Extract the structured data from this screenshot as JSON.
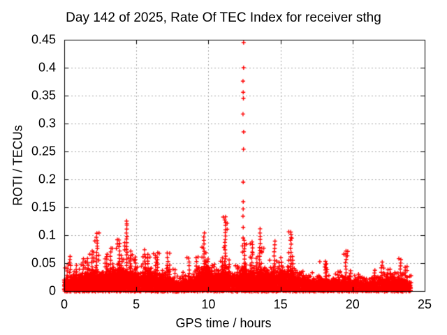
{
  "header": {
    "title": "Day 142 of 2025, Rate Of TEC Index for receiver sthg"
  },
  "chart_data": {
    "type": "scatter",
    "title": "Day 142 of 2025, Rate Of TEC Index for receiver sthg",
    "xlabel": "GPS time / hours",
    "ylabel": "ROTI / TECUs",
    "xlim": [
      0,
      25
    ],
    "ylim": [
      0,
      0.45
    ],
    "x_ticks": [
      "0",
      "5",
      "10",
      "15",
      "20",
      "25"
    ],
    "y_ticks": [
      "0",
      "0.05",
      "0.1",
      "0.15",
      "0.2",
      "0.25",
      "0.3",
      "0.35",
      "0.4",
      "0.45"
    ],
    "grid": true,
    "legend": "none",
    "marker": "plus",
    "marker_color": "#ff0000",
    "grid_color": "#a6a6a6",
    "axis_color": "#000000",
    "background": "#ffffff",
    "x_data_range": [
      0,
      24.05
    ],
    "spike": {
      "x": 12.42,
      "values": [
        0.445,
        0.4,
        0.376,
        0.356,
        0.345,
        0.317,
        0.285,
        0.254,
        0.195,
        0.16,
        0.147,
        0.134,
        0.114,
        0.095
      ]
    },
    "density_bins_format": "hour_start, hour_end, dense_band_top_TECUs, max_TECUs",
    "density_bins": [
      [
        0.0,
        0.3,
        0.02,
        0.042
      ],
      [
        0.3,
        0.6,
        0.022,
        0.062
      ],
      [
        0.6,
        1.0,
        0.025,
        0.048
      ],
      [
        1.0,
        1.4,
        0.028,
        0.058
      ],
      [
        1.4,
        1.9,
        0.03,
        0.066
      ],
      [
        1.9,
        2.2,
        0.032,
        0.076
      ],
      [
        2.2,
        2.6,
        0.032,
        0.105
      ],
      [
        2.6,
        3.0,
        0.03,
        0.066
      ],
      [
        3.0,
        3.3,
        0.032,
        0.078
      ],
      [
        3.3,
        3.9,
        0.038,
        0.096
      ],
      [
        3.9,
        4.15,
        0.035,
        0.07
      ],
      [
        4.15,
        4.5,
        0.035,
        0.13
      ],
      [
        4.5,
        4.9,
        0.032,
        0.072
      ],
      [
        4.9,
        5.2,
        0.03,
        0.062
      ],
      [
        5.2,
        5.6,
        0.03,
        0.076
      ],
      [
        5.6,
        6.0,
        0.032,
        0.072
      ],
      [
        6.0,
        6.4,
        0.03,
        0.068
      ],
      [
        6.4,
        7.0,
        0.028,
        0.073
      ],
      [
        7.0,
        7.4,
        0.026,
        0.072
      ],
      [
        7.4,
        8.4,
        0.016,
        0.042
      ],
      [
        8.4,
        9.0,
        0.018,
        0.063
      ],
      [
        9.0,
        9.5,
        0.028,
        0.06
      ],
      [
        9.5,
        10.1,
        0.048,
        0.106
      ],
      [
        10.1,
        10.6,
        0.026,
        0.048
      ],
      [
        10.6,
        11.0,
        0.03,
        0.062
      ],
      [
        11.0,
        11.3,
        0.04,
        0.136
      ],
      [
        11.3,
        11.8,
        0.028,
        0.058
      ],
      [
        11.8,
        12.3,
        0.026,
        0.05
      ],
      [
        12.3,
        12.65,
        0.04,
        0.095
      ],
      [
        12.65,
        13.1,
        0.032,
        0.09
      ],
      [
        13.1,
        13.5,
        0.03,
        0.062
      ],
      [
        13.5,
        14.25,
        0.038,
        0.118
      ],
      [
        14.25,
        14.8,
        0.034,
        0.092
      ],
      [
        14.8,
        15.3,
        0.03,
        0.062
      ],
      [
        15.3,
        15.8,
        0.036,
        0.11
      ],
      [
        15.8,
        16.3,
        0.028,
        0.068
      ],
      [
        16.3,
        17.5,
        0.02,
        0.038
      ],
      [
        17.5,
        18.1,
        0.022,
        0.058
      ],
      [
        18.1,
        18.6,
        0.02,
        0.05
      ],
      [
        18.6,
        19.3,
        0.018,
        0.036
      ],
      [
        19.3,
        19.8,
        0.022,
        0.075
      ],
      [
        19.8,
        20.3,
        0.018,
        0.04
      ],
      [
        20.3,
        21.5,
        0.016,
        0.032
      ],
      [
        21.5,
        22.0,
        0.018,
        0.038
      ],
      [
        22.0,
        22.4,
        0.02,
        0.052
      ],
      [
        22.4,
        22.9,
        0.02,
        0.042
      ],
      [
        22.9,
        23.4,
        0.022,
        0.06
      ],
      [
        23.4,
        24.05,
        0.016,
        0.045
      ]
    ]
  }
}
